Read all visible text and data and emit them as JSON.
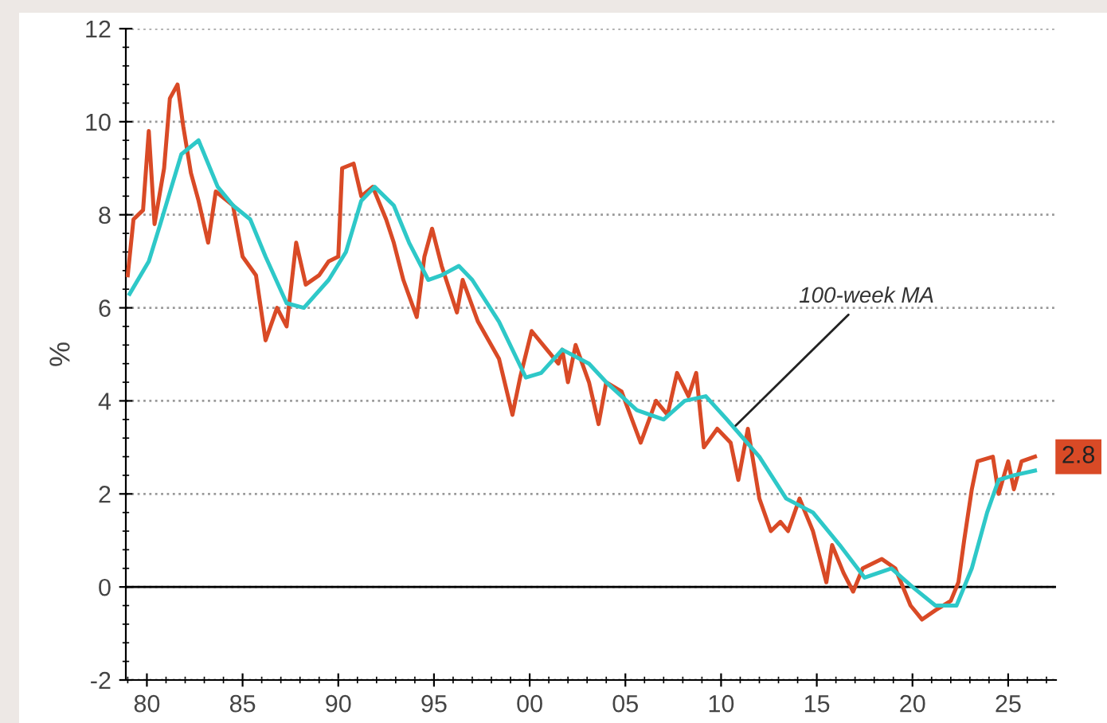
{
  "chart_data": {
    "type": "line",
    "ylabel": "%",
    "xlim": [
      1978.9,
      2027.5
    ],
    "xticks": [
      {
        "value": 1980,
        "label": "80"
      },
      {
        "value": 1985,
        "label": "85"
      },
      {
        "value": 1990,
        "label": "90"
      },
      {
        "value": 1995,
        "label": "95"
      },
      {
        "value": 2000,
        "label": "00"
      },
      {
        "value": 2005,
        "label": "05"
      },
      {
        "value": 2010,
        "label": "10"
      },
      {
        "value": 2015,
        "label": "15"
      },
      {
        "value": 2020,
        "label": "20"
      },
      {
        "value": 2025,
        "label": "25"
      }
    ],
    "ylim": [
      -2,
      12
    ],
    "yticks": [
      -2,
      0,
      2,
      4,
      6,
      8,
      10,
      12
    ],
    "grid": "y",
    "line_style": "solid",
    "ref_lines": [
      {
        "axis": "y",
        "value": 0,
        "color": "#000000"
      }
    ],
    "annotations": [
      {
        "text": "100-week MA",
        "x": 2010.6,
        "y": 3.4
      }
    ],
    "series": [
      {
        "color": "#d94a26",
        "x": [
          1979.0,
          1979.3,
          1979.8,
          1980.1,
          1980.4,
          1980.9,
          1981.2,
          1981.6,
          1981.9,
          1982.3,
          1982.7,
          1983.2,
          1983.6,
          1984.5,
          1985.0,
          1985.7,
          1986.2,
          1986.8,
          1987.3,
          1987.8,
          1988.3,
          1989.0,
          1989.5,
          1990.0,
          1990.2,
          1990.8,
          1991.2,
          1991.8,
          1992.5,
          1992.9,
          1993.4,
          1994.1,
          1994.5,
          1994.9,
          1995.4,
          1996.2,
          1996.5,
          1997.3,
          1998.4,
          1999.1,
          1999.5,
          2000.1,
          2000.9,
          2001.5,
          2001.7,
          2002.0,
          2002.4,
          2003.1,
          2003.6,
          2004.0,
          2004.8,
          2005.8,
          2006.6,
          2007.2,
          2007.7,
          2008.3,
          2008.7,
          2009.1,
          2009.8,
          2010.5,
          2010.9,
          2011.4,
          2012.0,
          2012.6,
          2013.1,
          2013.5,
          2014.1,
          2014.8,
          2015.5,
          2015.8,
          2016.4,
          2016.9,
          2017.4,
          2018.4,
          2019.1,
          2019.9,
          2020.5,
          2021.2,
          2022.0,
          2022.4,
          2022.7,
          2023.1,
          2023.4,
          2024.2,
          2024.5,
          2025.0,
          2025.3,
          2025.7,
          2026.4
        ],
        "values": [
          6.7,
          7.9,
          8.1,
          9.8,
          7.8,
          9.0,
          10.5,
          10.8,
          9.9,
          8.9,
          8.3,
          7.4,
          8.5,
          8.2,
          7.1,
          6.7,
          5.3,
          6.0,
          5.6,
          7.4,
          6.5,
          6.7,
          7.0,
          7.1,
          9.0,
          9.1,
          8.4,
          8.6,
          7.9,
          7.4,
          6.6,
          5.8,
          7.1,
          7.7,
          6.9,
          5.9,
          6.6,
          5.7,
          4.9,
          3.7,
          4.5,
          5.5,
          5.1,
          4.8,
          5.1,
          4.4,
          5.2,
          4.4,
          3.5,
          4.4,
          4.2,
          3.1,
          4.0,
          3.7,
          4.6,
          4.1,
          4.6,
          3.0,
          3.4,
          3.1,
          2.3,
          3.4,
          1.9,
          1.2,
          1.4,
          1.2,
          1.9,
          1.2,
          0.1,
          0.9,
          0.3,
          -0.1,
          0.4,
          0.6,
          0.4,
          -0.4,
          -0.7,
          -0.5,
          -0.3,
          0.1,
          1.0,
          2.1,
          2.7,
          2.8,
          2.0,
          2.7,
          2.1,
          2.7,
          2.8
        ],
        "value_labels": [
          null,
          null,
          null,
          null,
          null,
          null,
          null,
          null,
          null,
          null,
          null,
          null,
          null,
          null,
          null,
          null,
          null,
          null,
          null,
          null,
          null,
          null,
          null,
          null,
          null,
          null,
          null,
          null,
          null,
          null,
          null,
          null,
          null,
          null,
          null,
          null,
          null,
          null,
          null,
          null,
          null,
          null,
          null,
          null,
          null,
          null,
          null,
          null,
          null,
          null,
          null,
          null,
          null,
          null,
          null,
          null,
          null,
          null,
          null,
          null,
          null,
          null,
          null,
          null,
          null,
          null,
          null,
          null,
          null,
          null,
          null,
          null,
          null,
          null,
          null,
          null,
          null,
          null,
          null,
          null,
          null,
          null,
          null,
          null,
          null,
          null,
          null,
          null,
          "2.8"
        ]
      },
      {
        "color": "#2ec8c8",
        "x": [
          1979.1,
          1980.1,
          1980.7,
          1981.8,
          1982.7,
          1983.7,
          1984.5,
          1985.4,
          1986.2,
          1987.3,
          1988.2,
          1989.5,
          1990.4,
          1991.2,
          1991.9,
          1992.9,
          1993.7,
          1994.7,
          1995.4,
          1996.3,
          1997.0,
          1998.4,
          1999.8,
          2000.6,
          2001.7,
          2003.1,
          2004.0,
          2005.6,
          2007.0,
          2008.1,
          2009.2,
          2010.3,
          2012.0,
          2013.4,
          2014.8,
          2016.2,
          2017.5,
          2018.9,
          2020.0,
          2021.2,
          2022.3,
          2023.1,
          2023.9,
          2024.5,
          2025.3,
          2026.4
        ],
        "values": [
          6.3,
          7.0,
          7.8,
          9.3,
          9.6,
          8.6,
          8.2,
          7.9,
          7.1,
          6.1,
          6.0,
          6.6,
          7.2,
          8.3,
          8.6,
          8.2,
          7.4,
          6.6,
          6.7,
          6.9,
          6.6,
          5.7,
          4.5,
          4.6,
          5.1,
          4.8,
          4.4,
          3.8,
          3.6,
          4.0,
          4.1,
          3.6,
          2.8,
          1.9,
          1.6,
          0.9,
          0.2,
          0.4,
          0.0,
          -0.4,
          -0.4,
          0.4,
          1.6,
          2.3,
          2.4,
          2.5
        ]
      }
    ]
  }
}
